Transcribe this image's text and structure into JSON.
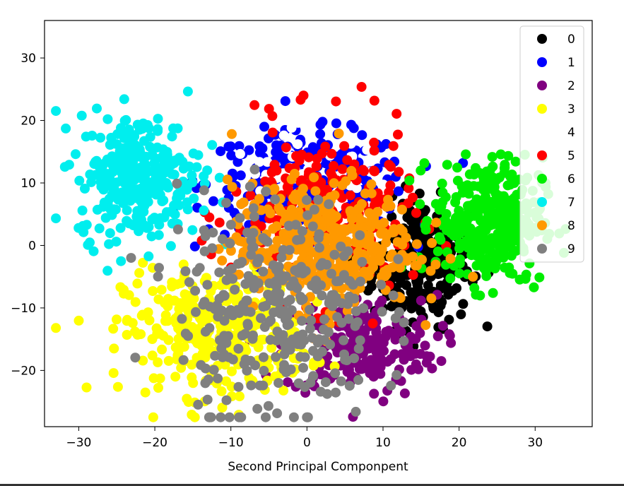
{
  "chart_data": {
    "type": "scatter",
    "title": "",
    "xlabel": "Second Principal Componpent",
    "ylabel": "",
    "xlim": [
      -34.5,
      37.5
    ],
    "ylim": [
      -29,
      36
    ],
    "xticks": [
      -30,
      -20,
      -10,
      0,
      10,
      20,
      30
    ],
    "xtick_labels": [
      "−30",
      "−20",
      "−10",
      "0",
      "10",
      "20",
      "30"
    ],
    "yticks": [
      -20,
      -10,
      0,
      10,
      20,
      30
    ],
    "ytick_labels": [
      "−20",
      "−10",
      "0",
      "10",
      "20",
      "30"
    ],
    "grid": false,
    "legend_position": "top-right",
    "series": [
      {
        "name": "0",
        "color": "#000000",
        "cluster": {
          "cx": 15,
          "cy": -3,
          "sx": 3.2,
          "sy": 5,
          "n": 260
        }
      },
      {
        "name": "1",
        "color": "#0000ff",
        "cluster": {
          "cx": 0,
          "cy": 10,
          "sx": 6.5,
          "sy": 4,
          "n": 300
        }
      },
      {
        "name": "2",
        "color": "#800080",
        "cluster": {
          "cx": 7,
          "cy": -16,
          "sx": 5,
          "sy": 4,
          "n": 220
        }
      },
      {
        "name": "3",
        "color": "#ffff00",
        "cluster": {
          "cx": -12,
          "cy": -14,
          "sx": 6,
          "sy": 5,
          "n": 320
        }
      },
      {
        "name": "4",
        "color": "#ffffff",
        "cluster": {
          "cx": 0,
          "cy": 10,
          "sx": 5,
          "sy": 4,
          "n": 60
        }
      },
      {
        "name": "5",
        "color": "#ff0000",
        "cluster": {
          "cx": 2,
          "cy": 5,
          "sx": 6,
          "sy": 7,
          "n": 230
        }
      },
      {
        "name": "6",
        "color": "#00ee00",
        "cluster": {
          "cx": 24,
          "cy": 4,
          "sx": 3.5,
          "sy": 5,
          "n": 360
        }
      },
      {
        "name": "7",
        "color": "#00eeee",
        "cluster": {
          "cx": -22,
          "cy": 11,
          "sx": 4,
          "sy": 5,
          "n": 300
        }
      },
      {
        "name": "8",
        "color": "#ff9900",
        "cluster": {
          "cx": 2,
          "cy": 0,
          "sx": 6,
          "sy": 5,
          "n": 420
        }
      },
      {
        "name": "9",
        "color": "#808080",
        "cluster": {
          "cx": -4,
          "cy": -10,
          "sx": 6.5,
          "sy": 9,
          "n": 320
        }
      }
    ]
  },
  "colors": {
    "background": "#ffffff",
    "axes_edge": "#000000"
  }
}
